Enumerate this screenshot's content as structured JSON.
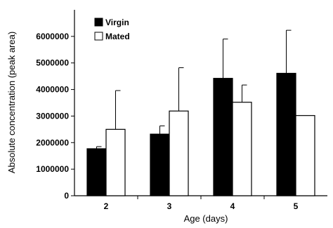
{
  "chart_data": {
    "type": "bar",
    "title": "",
    "xlabel": "Age (days)",
    "ylabel": "Absolute concentration (peak area)",
    "categories": [
      "2",
      "3",
      "4",
      "5"
    ],
    "ylim": [
      0,
      7000000
    ],
    "yticks": [
      0,
      1000000,
      2000000,
      3000000,
      4000000,
      5000000,
      6000000
    ],
    "ytick_labels": [
      "0",
      "1000000",
      "2000000",
      "3000000",
      "4000000",
      "5000000",
      "6000000"
    ],
    "grid": false,
    "legend_position": "top-left",
    "series": [
      {
        "name": "Virgin",
        "color": "#000000",
        "values": [
          1770000,
          2320000,
          4420000,
          4610000
        ],
        "errors": [
          80000,
          310000,
          1480000,
          1620000
        ]
      },
      {
        "name": "Mated",
        "color": "#ffffff",
        "values": [
          2500000,
          3190000,
          3520000,
          3020000
        ],
        "errors": [
          1460000,
          1630000,
          650000,
          0
        ]
      }
    ]
  }
}
